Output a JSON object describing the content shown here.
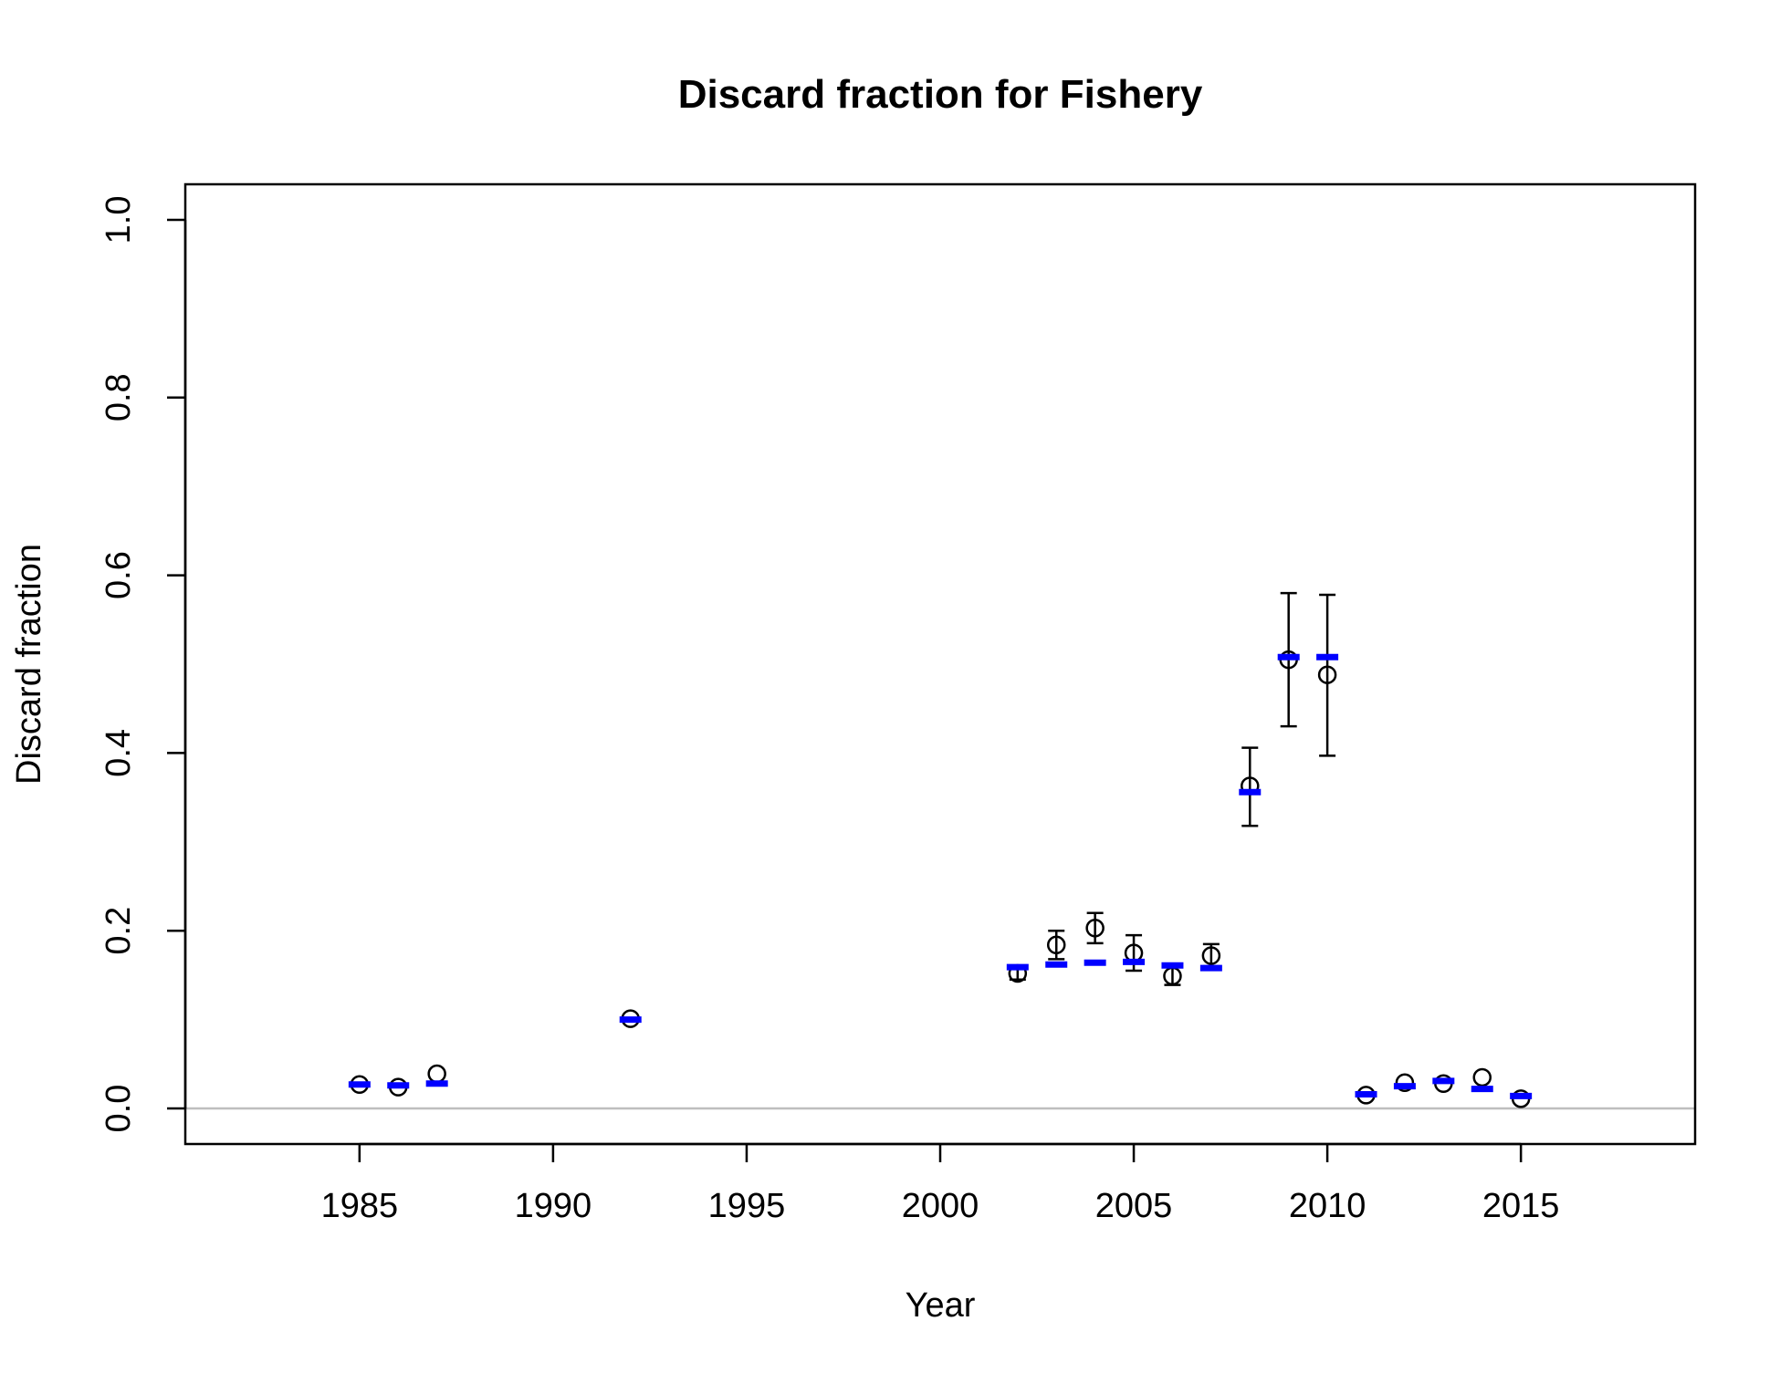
{
  "chart_data": {
    "type": "scatter",
    "title": "Discard fraction for Fishery",
    "xlabel": "Year",
    "ylabel": "Discard fraction",
    "xlim": [
      1980.5,
      2019.5
    ],
    "ylim": [
      -0.04,
      1.04
    ],
    "x_ticks": [
      1985,
      1990,
      1995,
      2000,
      2005,
      2010,
      2015
    ],
    "x_tick_labels": [
      "1985",
      "1990",
      "1995",
      "2000",
      "2005",
      "2010",
      "2015"
    ],
    "y_ticks": [
      0.0,
      0.2,
      0.4,
      0.6,
      0.8,
      1.0
    ],
    "y_tick_labels": [
      "0.0",
      "0.2",
      "0.4",
      "0.6",
      "0.8",
      "1.0"
    ],
    "grid": false,
    "reference_line": {
      "y": 0.0,
      "color": "#bebebe"
    },
    "series": [
      {
        "marker": "open-circle",
        "color": "#000000",
        "points": [
          {
            "x": 1985,
            "y": 0.027
          },
          {
            "x": 1986,
            "y": 0.024
          },
          {
            "x": 1987,
            "y": 0.039
          },
          {
            "x": 1992,
            "y": 0.101
          },
          {
            "x": 2002,
            "y": 0.152,
            "lo": 0.145,
            "hi": 0.16
          },
          {
            "x": 2003,
            "y": 0.184,
            "lo": 0.168,
            "hi": 0.2
          },
          {
            "x": 2004,
            "y": 0.203,
            "lo": 0.186,
            "hi": 0.22
          },
          {
            "x": 2005,
            "y": 0.175,
            "lo": 0.155,
            "hi": 0.195
          },
          {
            "x": 2006,
            "y": 0.149,
            "lo": 0.139,
            "hi": 0.16
          },
          {
            "x": 2007,
            "y": 0.172,
            "lo": 0.16,
            "hi": 0.185
          },
          {
            "x": 2008,
            "y": 0.363,
            "lo": 0.318,
            "hi": 0.406
          },
          {
            "x": 2009,
            "y": 0.505,
            "lo": 0.43,
            "hi": 0.58
          },
          {
            "x": 2010,
            "y": 0.488,
            "lo": 0.397,
            "hi": 0.578
          },
          {
            "x": 2011,
            "y": 0.015
          },
          {
            "x": 2012,
            "y": 0.029
          },
          {
            "x": 2013,
            "y": 0.028
          },
          {
            "x": 2014,
            "y": 0.035
          },
          {
            "x": 2015,
            "y": 0.011
          }
        ]
      },
      {
        "marker": "horizontal-dash",
        "color": "#0000ff",
        "points": [
          {
            "x": 1985,
            "y": 0.027
          },
          {
            "x": 1986,
            "y": 0.026
          },
          {
            "x": 1987,
            "y": 0.028
          },
          {
            "x": 1992,
            "y": 0.1
          },
          {
            "x": 2002,
            "y": 0.159
          },
          {
            "x": 2003,
            "y": 0.162
          },
          {
            "x": 2004,
            "y": 0.164
          },
          {
            "x": 2005,
            "y": 0.165
          },
          {
            "x": 2006,
            "y": 0.161
          },
          {
            "x": 2007,
            "y": 0.158
          },
          {
            "x": 2008,
            "y": 0.356
          },
          {
            "x": 2009,
            "y": 0.508
          },
          {
            "x": 2010,
            "y": 0.508
          },
          {
            "x": 2011,
            "y": 0.016
          },
          {
            "x": 2012,
            "y": 0.025
          },
          {
            "x": 2013,
            "y": 0.031
          },
          {
            "x": 2014,
            "y": 0.022
          },
          {
            "x": 2015,
            "y": 0.014
          }
        ]
      }
    ]
  }
}
